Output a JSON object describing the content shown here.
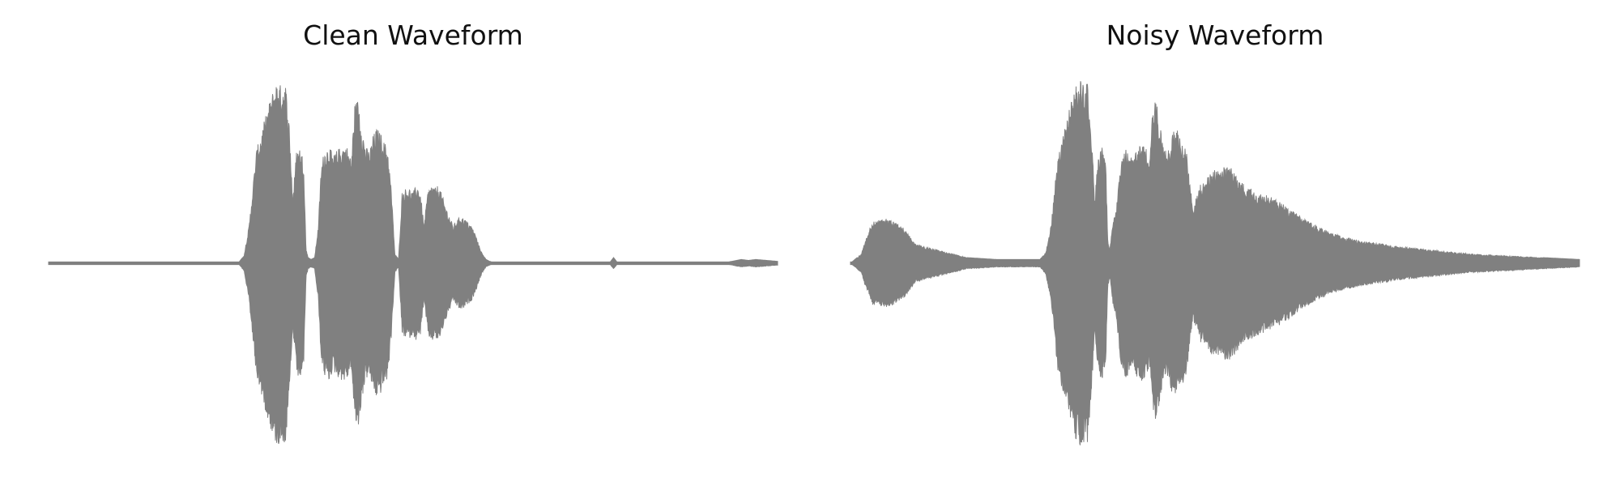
{
  "colors": {
    "waveform": "#808080",
    "background": "#ffffff",
    "title": "#111111"
  },
  "chart_data": [
    {
      "type": "area",
      "title": "Clean Waveform",
      "xlabel": "",
      "ylabel": "",
      "axes_visible": false,
      "grid": false,
      "xlim": [
        0,
        1
      ],
      "ylim": [
        -1,
        1
      ],
      "series": [
        {
          "x": [
            0,
            0.26,
            0.268,
            0.275,
            0.285,
            0.3,
            0.31,
            0.315,
            0.318,
            0.325,
            0.33,
            0.335,
            0.34,
            0.345,
            0.35,
            0.353,
            0.356,
            0.36,
            0.365,
            0.37,
            0.374,
            0.378,
            0.385,
            0.39,
            0.395,
            0.4,
            0.405,
            0.41,
            0.415,
            0.42,
            0.425,
            0.43,
            0.435,
            0.44,
            0.445,
            0.45,
            0.455,
            0.46,
            0.465,
            0.47,
            0.475,
            0.48,
            0.485,
            0.49,
            0.495,
            0.5,
            0.505,
            0.51,
            0.515,
            0.52,
            0.525,
            0.53,
            0.535,
            0.54,
            0.545,
            0.55,
            0.555,
            0.56,
            0.565,
            0.57,
            0.575,
            0.58,
            0.585,
            0.59,
            0.595,
            0.6,
            0.605,
            0.61,
            0.615,
            0.62,
            0.625,
            0.63,
            0.635,
            0.64,
            0.645,
            0.65,
            0.655,
            0.665,
            0.7,
            0.75,
            0.77,
            0.775,
            0.78,
            0.85,
            0.93,
            0.94,
            0.95,
            0.96,
            0.97,
            1.0
          ],
          "amplitude": [
            0,
            0,
            0.04,
            0.2,
            0.6,
            0.82,
            0.95,
            0.98,
            0.95,
            0.96,
            0.75,
            0.35,
            0.6,
            0.62,
            0.55,
            0.08,
            0.03,
            0.02,
            0.03,
            0.2,
            0.52,
            0.6,
            0.63,
            0.57,
            0.6,
            0.62,
            0.63,
            0.62,
            0.55,
            0.85,
            0.88,
            0.72,
            0.62,
            0.6,
            0.68,
            0.72,
            0.7,
            0.65,
            0.62,
            0.4,
            0.05,
            0.02,
            0.38,
            0.4,
            0.4,
            0.38,
            0.42,
            0.38,
            0.2,
            0.38,
            0.42,
            0.4,
            0.42,
            0.36,
            0.3,
            0.25,
            0.2,
            0.23,
            0.25,
            0.24,
            0.22,
            0.2,
            0.16,
            0.1,
            0.05,
            0.02,
            0.01,
            0.005,
            0.005,
            0.005,
            0.005,
            0.005,
            0.005,
            0.005,
            0.005,
            0.005,
            0.005,
            0.005,
            0.005,
            0.005,
            0.005,
            0.03,
            0.005,
            0.005,
            0.005,
            0.012,
            0.02,
            0.015,
            0.02,
            0.01
          ]
        }
      ]
    },
    {
      "type": "area",
      "title": "Noisy Waveform",
      "xlabel": "",
      "ylabel": "",
      "axes_visible": false,
      "grid": false,
      "xlim": [
        0,
        1
      ],
      "ylim": [
        -1,
        1
      ],
      "series": [
        {
          "x": [
            0,
            0.015,
            0.02,
            0.03,
            0.05,
            0.07,
            0.09,
            0.11,
            0.13,
            0.16,
            0.2,
            0.24,
            0.26,
            0.268,
            0.275,
            0.285,
            0.3,
            0.31,
            0.315,
            0.318,
            0.325,
            0.33,
            0.335,
            0.34,
            0.345,
            0.35,
            0.353,
            0.356,
            0.36,
            0.365,
            0.37,
            0.374,
            0.378,
            0.385,
            0.39,
            0.395,
            0.4,
            0.405,
            0.41,
            0.415,
            0.42,
            0.425,
            0.43,
            0.435,
            0.44,
            0.445,
            0.45,
            0.455,
            0.46,
            0.465,
            0.47,
            0.48,
            0.5,
            0.52,
            0.54,
            0.56,
            0.58,
            0.6,
            0.62,
            0.64,
            0.66,
            0.7,
            0.75,
            0.8,
            0.85,
            0.9,
            0.95,
            1.0
          ],
          "amplitude": [
            0,
            0.05,
            0.12,
            0.22,
            0.24,
            0.2,
            0.1,
            0.08,
            0.06,
            0.03,
            0.02,
            0.02,
            0.02,
            0.06,
            0.2,
            0.6,
            0.82,
            0.95,
            0.98,
            0.95,
            0.96,
            0.75,
            0.35,
            0.6,
            0.62,
            0.55,
            0.12,
            0.08,
            0.22,
            0.3,
            0.52,
            0.6,
            0.63,
            0.57,
            0.6,
            0.62,
            0.63,
            0.62,
            0.55,
            0.85,
            0.88,
            0.72,
            0.62,
            0.6,
            0.68,
            0.72,
            0.7,
            0.65,
            0.62,
            0.45,
            0.3,
            0.42,
            0.5,
            0.52,
            0.42,
            0.38,
            0.35,
            0.3,
            0.24,
            0.2,
            0.16,
            0.12,
            0.09,
            0.07,
            0.05,
            0.04,
            0.03,
            0.02
          ]
        }
      ]
    }
  ]
}
